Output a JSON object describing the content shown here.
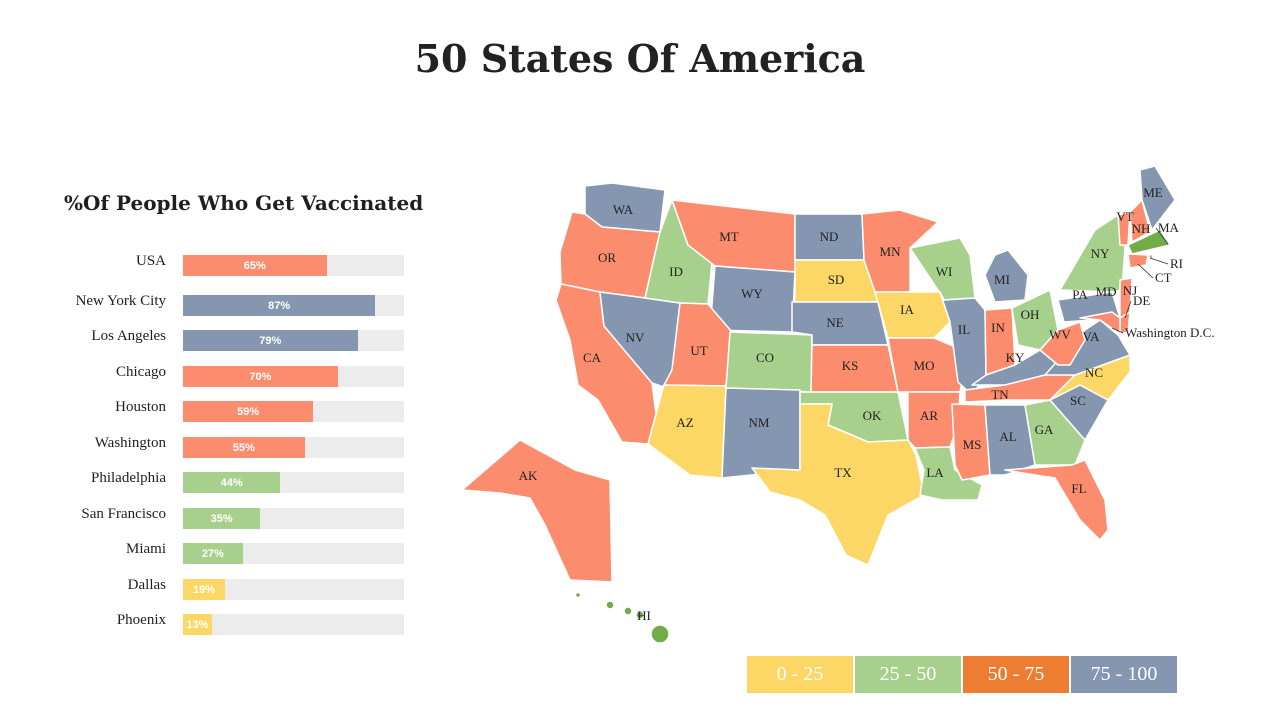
{
  "title": "50 States Of America",
  "subtitle": "%Of People Who Get Vaccinated",
  "colors": {
    "c1": "#fcd765",
    "c2": "#a8d08d",
    "c3": "#fb8c6d",
    "c4": "#8496b0",
    "legend_c3": "#ed7d31",
    "track": "#ececec",
    "highlight": "#70ad47"
  },
  "chart_data": {
    "type": "bar",
    "orientation": "horizontal",
    "categories": [
      "USA",
      "New York City",
      "Los Angeles",
      "Chicago",
      "Houston",
      "Washington",
      "Philadelphia",
      "San Francisco",
      "Miami",
      "Dallas",
      "Phoenix"
    ],
    "values": [
      65,
      87,
      79,
      70,
      59,
      55,
      44,
      35,
      27,
      19,
      13
    ],
    "data_labels": [
      "65%",
      "87%",
      "79%",
      "70%",
      "59%",
      "55%",
      "44%",
      "35%",
      "27%",
      "19%",
      "13%"
    ],
    "xlim": [
      0,
      100
    ]
  },
  "map": {
    "states": {
      "WA": "c4",
      "OR": "c3",
      "CA": "c3",
      "ID": "c2",
      "NV": "c4",
      "MT": "c3",
      "WY": "c4",
      "UT": "c3",
      "AZ": "c1",
      "CO": "c2",
      "NM": "c4",
      "ND": "c4",
      "SD": "c1",
      "NE": "c4",
      "KS": "c3",
      "OK": "c2",
      "TX": "c1",
      "MN": "c3",
      "IA": "c1",
      "MO": "c3",
      "AR": "c3",
      "LA": "c2",
      "WI": "c2",
      "IL": "c4",
      "MI": "c4",
      "IN": "c3",
      "OH": "c2",
      "KY": "c4",
      "TN": "c3",
      "MS": "c3",
      "AL": "c4",
      "GA": "c2",
      "FL": "c3",
      "SC": "c4",
      "NC": "c1",
      "VA": "c4",
      "WV": "c3",
      "PA": "c4",
      "NY": "c2",
      "VT": "c3",
      "NH": "c3",
      "ME": "c4",
      "MA": "highlight",
      "RI": "c3",
      "CT": "c3",
      "NJ": "c3",
      "DE": "c3",
      "MD": "c3",
      "AK": "c3",
      "HI": "highlight"
    },
    "callout_labels": [
      "MA",
      "RI",
      "CT",
      "DE",
      "Washington D.C."
    ]
  },
  "legend": [
    {
      "label": "0 - 25",
      "color": "#fcd765"
    },
    {
      "label": "25 - 50",
      "color": "#a8d08d"
    },
    {
      "label": "50 - 75",
      "color": "#ed7d31"
    },
    {
      "label": "75 - 100",
      "color": "#8496b0"
    }
  ]
}
